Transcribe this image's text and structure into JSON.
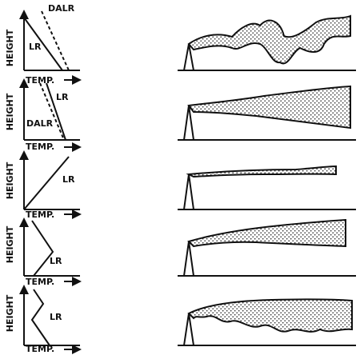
{
  "panels": [
    {
      "height_label": "HEIGHT",
      "temp_label": "TEMP.",
      "line_labels": [
        "DALR",
        "LR"
      ]
    },
    {
      "height_label": "HEIGHT",
      "temp_label": "TEMP.",
      "line_labels": [
        "LR",
        "DALR"
      ]
    },
    {
      "height_label": "HEIGHT",
      "temp_label": "TEMP.",
      "line_labels": [
        "LR"
      ]
    },
    {
      "height_label": "HEIGHT",
      "temp_label": "TEMP.",
      "line_labels": [
        "LR"
      ]
    },
    {
      "height_label": "HEIGHT",
      "temp_label": "TEMP.",
      "line_labels": [
        "LR"
      ]
    }
  ]
}
